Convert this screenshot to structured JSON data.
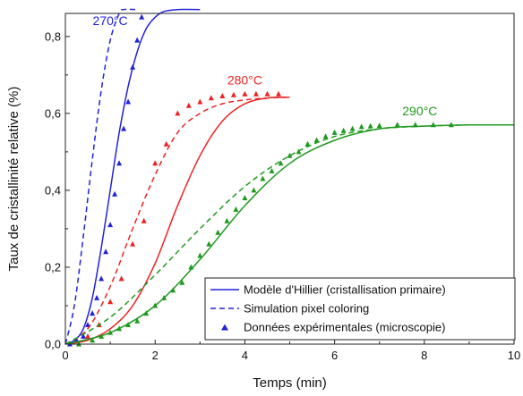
{
  "chart_data": {
    "type": "line",
    "xlabel": "Temps (min)",
    "ylabel": "Taux de cristallinité relative (%)",
    "xlim": [
      0,
      10
    ],
    "ylim": [
      0,
      0.86
    ],
    "x_ticks": [
      "0",
      "2",
      "4",
      "6",
      "8",
      "10"
    ],
    "y_ticks": [
      "0,0",
      "0,2",
      "0,4",
      "0,6",
      "0,8"
    ],
    "grid": false,
    "legend_position": "bottom-right",
    "legend": [
      {
        "label": "Modèle d'Hillier (cristallisation primaire)",
        "style": "solid"
      },
      {
        "label": "Simulation pixel coloring",
        "style": "dashed"
      },
      {
        "label": "Données expérimentales (microscopie)",
        "style": "triangle"
      }
    ],
    "series": [
      {
        "name": "270°C",
        "color": "#2222dd",
        "label_at": [
          1.0,
          0.83
        ],
        "model": [
          [
            0,
            0
          ],
          [
            0.2,
            0.01
          ],
          [
            0.4,
            0.04
          ],
          [
            0.6,
            0.12
          ],
          [
            0.8,
            0.25
          ],
          [
            1.0,
            0.4
          ],
          [
            1.2,
            0.55
          ],
          [
            1.4,
            0.67
          ],
          [
            1.6,
            0.76
          ],
          [
            1.8,
            0.82
          ],
          [
            2.0,
            0.85
          ],
          [
            2.2,
            0.865
          ],
          [
            2.5,
            0.87
          ],
          [
            3.0,
            0.87
          ]
        ],
        "simulation": [
          [
            0,
            0
          ],
          [
            0.2,
            0.1
          ],
          [
            0.4,
            0.28
          ],
          [
            0.6,
            0.48
          ],
          [
            0.8,
            0.66
          ],
          [
            1.0,
            0.79
          ],
          [
            1.2,
            0.86
          ],
          [
            1.3,
            0.87
          ],
          [
            1.6,
            0.87
          ]
        ],
        "experimental": [
          [
            0.1,
            0.0
          ],
          [
            0.25,
            0.01
          ],
          [
            0.4,
            0.02
          ],
          [
            0.5,
            0.05
          ],
          [
            0.6,
            0.08
          ],
          [
            0.7,
            0.12
          ],
          [
            0.8,
            0.17
          ],
          [
            0.9,
            0.24
          ],
          [
            1.0,
            0.31
          ],
          [
            1.1,
            0.39
          ],
          [
            1.2,
            0.47
          ],
          [
            1.3,
            0.56
          ],
          [
            1.4,
            0.63
          ],
          [
            1.5,
            0.72
          ],
          [
            1.6,
            0.79
          ],
          [
            1.7,
            0.85
          ]
        ]
      },
      {
        "name": "280°C",
        "color": "#ee2222",
        "label_at": [
          4.0,
          0.675
        ],
        "model": [
          [
            0,
            0
          ],
          [
            0.5,
            0.01
          ],
          [
            1.0,
            0.04
          ],
          [
            1.5,
            0.1
          ],
          [
            2.0,
            0.21
          ],
          [
            2.5,
            0.36
          ],
          [
            3.0,
            0.49
          ],
          [
            3.5,
            0.58
          ],
          [
            4.0,
            0.625
          ],
          [
            4.5,
            0.64
          ],
          [
            5.0,
            0.642
          ]
        ],
        "simulation": [
          [
            0,
            0
          ],
          [
            0.5,
            0.04
          ],
          [
            1.0,
            0.15
          ],
          [
            1.5,
            0.3
          ],
          [
            2.0,
            0.44
          ],
          [
            2.5,
            0.55
          ],
          [
            3.0,
            0.6
          ],
          [
            3.5,
            0.625
          ],
          [
            4.0,
            0.635
          ],
          [
            4.5,
            0.64
          ],
          [
            5.0,
            0.642
          ]
        ],
        "experimental": [
          [
            0.5,
            0.02
          ],
          [
            0.75,
            0.05
          ],
          [
            1.0,
            0.11
          ],
          [
            1.25,
            0.17
          ],
          [
            1.5,
            0.26
          ],
          [
            1.75,
            0.32
          ],
          [
            2.0,
            0.47
          ],
          [
            2.25,
            0.52
          ],
          [
            2.5,
            0.6
          ],
          [
            2.75,
            0.62
          ],
          [
            3.0,
            0.63
          ],
          [
            3.25,
            0.64
          ],
          [
            3.5,
            0.645
          ],
          [
            3.75,
            0.648
          ],
          [
            4.0,
            0.65
          ],
          [
            4.25,
            0.65
          ],
          [
            4.5,
            0.65
          ],
          [
            4.75,
            0.65
          ]
        ]
      },
      {
        "name": "290°C",
        "color": "#1f9a1f",
        "label_at": [
          7.9,
          0.595
        ],
        "model": [
          [
            0,
            0
          ],
          [
            1,
            0.03
          ],
          [
            2,
            0.1
          ],
          [
            3,
            0.22
          ],
          [
            4,
            0.36
          ],
          [
            5,
            0.47
          ],
          [
            6,
            0.53
          ],
          [
            7,
            0.56
          ],
          [
            8,
            0.567
          ],
          [
            9,
            0.57
          ],
          [
            10,
            0.57
          ]
        ],
        "simulation": [
          [
            0,
            0
          ],
          [
            1,
            0.07
          ],
          [
            2,
            0.18
          ],
          [
            3,
            0.3
          ],
          [
            4,
            0.41
          ],
          [
            5,
            0.49
          ],
          [
            6,
            0.54
          ],
          [
            7,
            0.56
          ],
          [
            8,
            0.567
          ],
          [
            9,
            0.57
          ],
          [
            10,
            0.57
          ]
        ],
        "experimental": [
          [
            0.3,
            0.0
          ],
          [
            0.6,
            0.01
          ],
          [
            0.8,
            0.02
          ],
          [
            1.0,
            0.03
          ],
          [
            1.2,
            0.04
          ],
          [
            1.4,
            0.05
          ],
          [
            1.6,
            0.06
          ],
          [
            1.8,
            0.08
          ],
          [
            2.0,
            0.1
          ],
          [
            2.2,
            0.12
          ],
          [
            2.4,
            0.14
          ],
          [
            2.6,
            0.16
          ],
          [
            2.8,
            0.2
          ],
          [
            3.0,
            0.23
          ],
          [
            3.2,
            0.26
          ],
          [
            3.4,
            0.29
          ],
          [
            3.6,
            0.32
          ],
          [
            3.8,
            0.35
          ],
          [
            4.0,
            0.38
          ],
          [
            4.2,
            0.4
          ],
          [
            4.4,
            0.43
          ],
          [
            4.6,
            0.45
          ],
          [
            4.8,
            0.47
          ],
          [
            5.0,
            0.49
          ],
          [
            5.2,
            0.5
          ],
          [
            5.4,
            0.52
          ],
          [
            5.6,
            0.53
          ],
          [
            5.8,
            0.54
          ],
          [
            6.0,
            0.55
          ],
          [
            6.2,
            0.555
          ],
          [
            6.4,
            0.56
          ],
          [
            6.6,
            0.565
          ],
          [
            6.8,
            0.567
          ],
          [
            7.0,
            0.568
          ],
          [
            7.4,
            0.57
          ],
          [
            7.8,
            0.57
          ],
          [
            8.2,
            0.57
          ],
          [
            8.6,
            0.57
          ]
        ]
      }
    ]
  }
}
